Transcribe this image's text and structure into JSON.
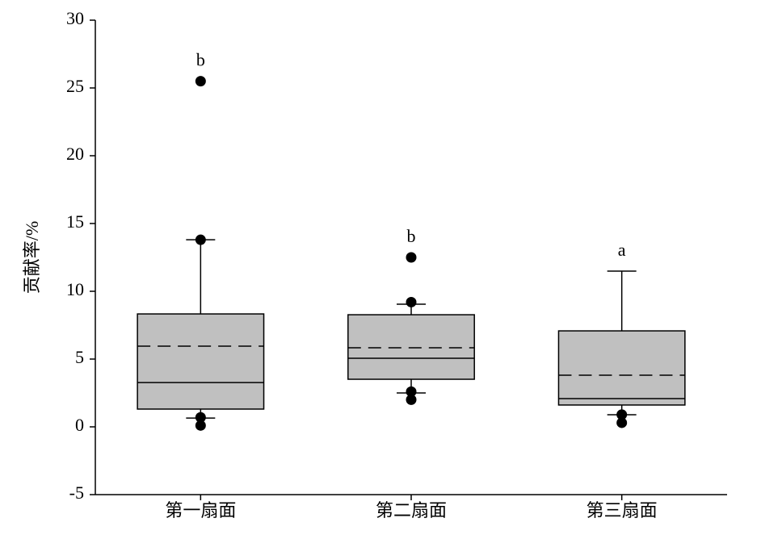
{
  "chart_data": {
    "type": "box",
    "ylabel": "贡献率/%",
    "categories": [
      "第一扇面",
      "第二扇面",
      "第三扇面"
    ],
    "color": "#c0c0c0",
    "ylim": [
      -5,
      30
    ],
    "yticks": [
      -5,
      0,
      5,
      10,
      15,
      20,
      25,
      30
    ],
    "boxes": [
      {
        "whisker_low": 0.65,
        "q1": 1.31,
        "median": 3.27,
        "mean": 5.95,
        "q3": 8.33,
        "whisker_high": 13.8,
        "outliers": [
          25.5,
          13.8,
          0.7,
          0.1
        ],
        "annotation": "b"
      },
      {
        "whisker_low": 2.5,
        "q1": 3.51,
        "median": 5.06,
        "mean": 5.83,
        "q3": 8.27,
        "whisker_high": 9.05,
        "outliers": [
          12.5,
          9.2,
          2.6,
          2.0
        ],
        "annotation": "b"
      },
      {
        "whisker_low": 0.89,
        "q1": 1.61,
        "median": 2.08,
        "mean": 3.81,
        "q3": 7.08,
        "whisker_high": 11.49,
        "outliers": [
          0.9,
          0.3
        ],
        "annotation": "a"
      }
    ]
  }
}
